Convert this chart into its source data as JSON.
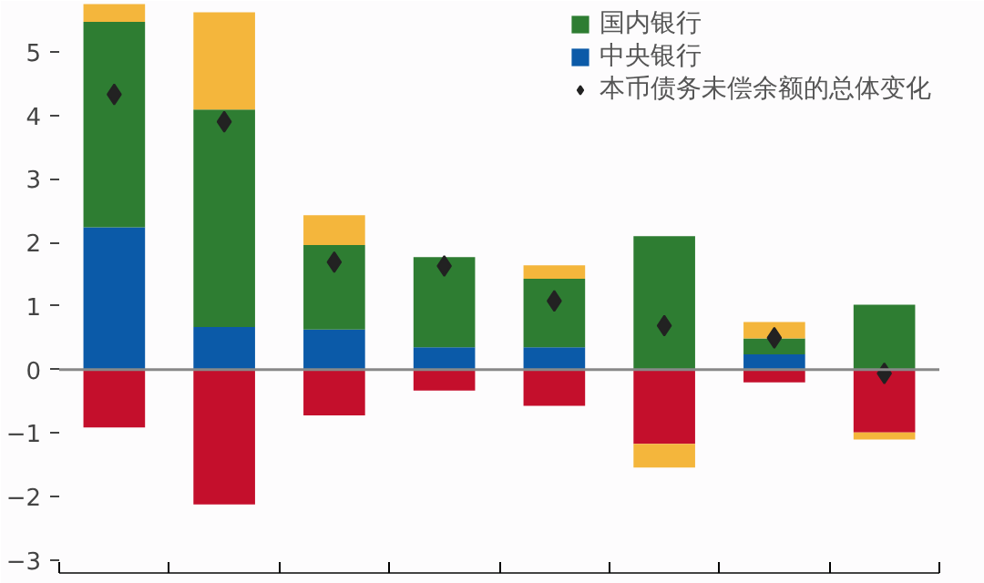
{
  "chart_data": {
    "type": "bar",
    "stacked": true,
    "categories": [
      null,
      null,
      null,
      null,
      null,
      null,
      null,
      null
    ],
    "series": [
      {
        "color": "#c40f2c",
        "values": [
          -0.91,
          -2.12,
          -0.72,
          -0.33,
          -0.57,
          -1.17,
          -0.2,
          -0.99
        ]
      },
      {
        "name": "中央银行",
        "color": "#0b5aa8",
        "values": [
          2.24,
          0.67,
          0.63,
          0.35,
          0.35,
          null,
          0.24,
          null
        ]
      },
      {
        "name": "国内银行",
        "color": "#2e7d32",
        "values": [
          3.23,
          3.42,
          1.33,
          1.42,
          1.08,
          2.1,
          0.25,
          1.02
        ]
      },
      {
        "color": "#f4b63c",
        "values": [
          0.28,
          1.53,
          0.47,
          null,
          0.21,
          -0.37,
          0.26,
          -0.11
        ]
      },
      {
        "name": "本币债务未偿余额的总体变化",
        "type": "scatter",
        "marker": "diamond",
        "color": "#222222",
        "values": [
          4.33,
          3.9,
          1.69,
          1.63,
          1.08,
          0.69,
          0.5,
          -0.06
        ]
      }
    ],
    "ylim": [
      -3.2,
      5.8
    ],
    "yticks": [
      {
        "value": -3,
        "label": "−3"
      },
      {
        "value": -2,
        "label": "−2"
      },
      {
        "value": -1,
        "label": "−1"
      },
      0,
      1,
      2,
      3,
      4,
      5
    ],
    "ref_lines": [
      {
        "axis": "y",
        "value": 0,
        "color": "#888888"
      }
    ],
    "tick_labels": "y",
    "grid": false,
    "legend": "top right"
  }
}
